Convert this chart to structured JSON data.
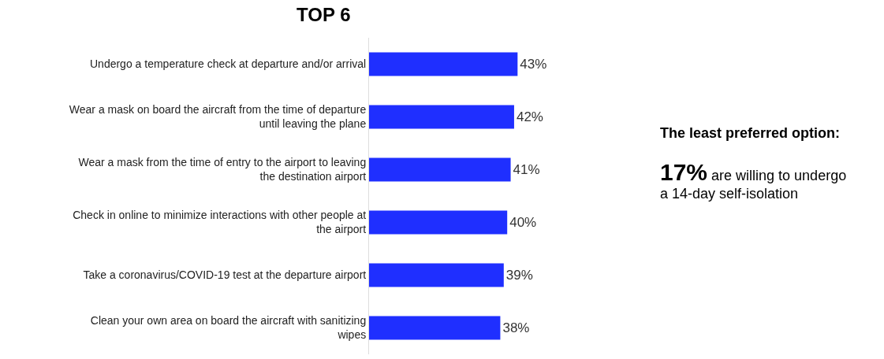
{
  "chart_data": {
    "type": "bar",
    "orientation": "horizontal",
    "title": "TOP 6",
    "categories": [
      "Undergo a temperature check at departure and/or arrival",
      "Wear a mask on board the aircraft from the time of departure until leaving the plane",
      "Wear a mask from the time of entry to the airport to leaving the destination airport",
      "Check in online to minimize interactions with other people at the airport",
      "Take a coronavirus/COVID-19 test at the departure airport",
      "Clean your own area on board the aircraft with sanitizing wipes"
    ],
    "values": [
      43,
      42,
      41,
      40,
      39,
      38
    ],
    "value_labels": [
      "43%",
      "42%",
      "41%",
      "40%",
      "39%",
      "38%"
    ],
    "color": "#1f2fff",
    "annotations": [
      "The least preferred option:",
      "17%",
      "are willing to undergo a 14-day self-isolation"
    ]
  }
}
